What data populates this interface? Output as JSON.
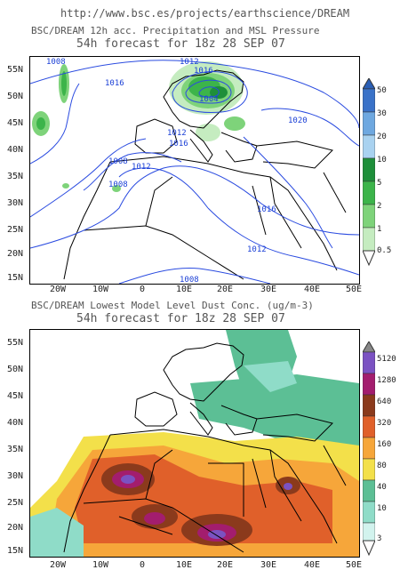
{
  "header": {
    "url": "http://www.bsc.es/projects/earthscience/DREAM"
  },
  "top_panel": {
    "title_line1": "BSC/DREAM 12h acc. Precipitation and MSL Pressure",
    "title_line2": "54h forecast for 18z 28 SEP 07",
    "lat_labels": [
      "55N",
      "50N",
      "45N",
      "40N",
      "35N",
      "30N",
      "25N",
      "20N",
      "15N"
    ],
    "lon_labels": [
      "20W",
      "10W",
      "0",
      "10E",
      "20E",
      "30E",
      "40E",
      "50E"
    ],
    "colorbar": {
      "labels": [
        "50",
        "30",
        "20",
        "10",
        "5",
        "2",
        "1",
        "0.5"
      ],
      "colors": [
        "#3a72c8",
        "#6ea8e0",
        "#a9d2f0",
        "#1e8f3a",
        "#3cb44a",
        "#7ed37a",
        "#c5ecc0"
      ]
    },
    "isobar_labels": [
      "1008",
      "1016",
      "1012",
      "1004",
      "1016",
      "1012",
      "1016",
      "1020",
      "1008",
      "1012",
      "1008",
      "1016",
      "1012",
      "1008"
    ]
  },
  "bottom_panel": {
    "title_line1": "BSC/DREAM Lowest Model Level Dust Conc. (ug/m-3)",
    "title_line2": "54h forecast for 18z 28 SEP 07",
    "lat_labels": [
      "55N",
      "50N",
      "45N",
      "40N",
      "35N",
      "30N",
      "25N",
      "20N",
      "15N"
    ],
    "lon_labels": [
      "20W",
      "10W",
      "0",
      "10E",
      "20E",
      "30E",
      "40E",
      "50E"
    ],
    "colorbar": {
      "labels": [
        "5120",
        "1280",
        "640",
        "320",
        "160",
        "80",
        "40",
        "10",
        "3"
      ],
      "colors": [
        "#7b52c2",
        "#a31d6e",
        "#8b3a1c",
        "#e0602a",
        "#f6a63a",
        "#f3e04a",
        "#5cbf95",
        "#8fdcc8",
        "#d2f3ee"
      ]
    }
  }
}
